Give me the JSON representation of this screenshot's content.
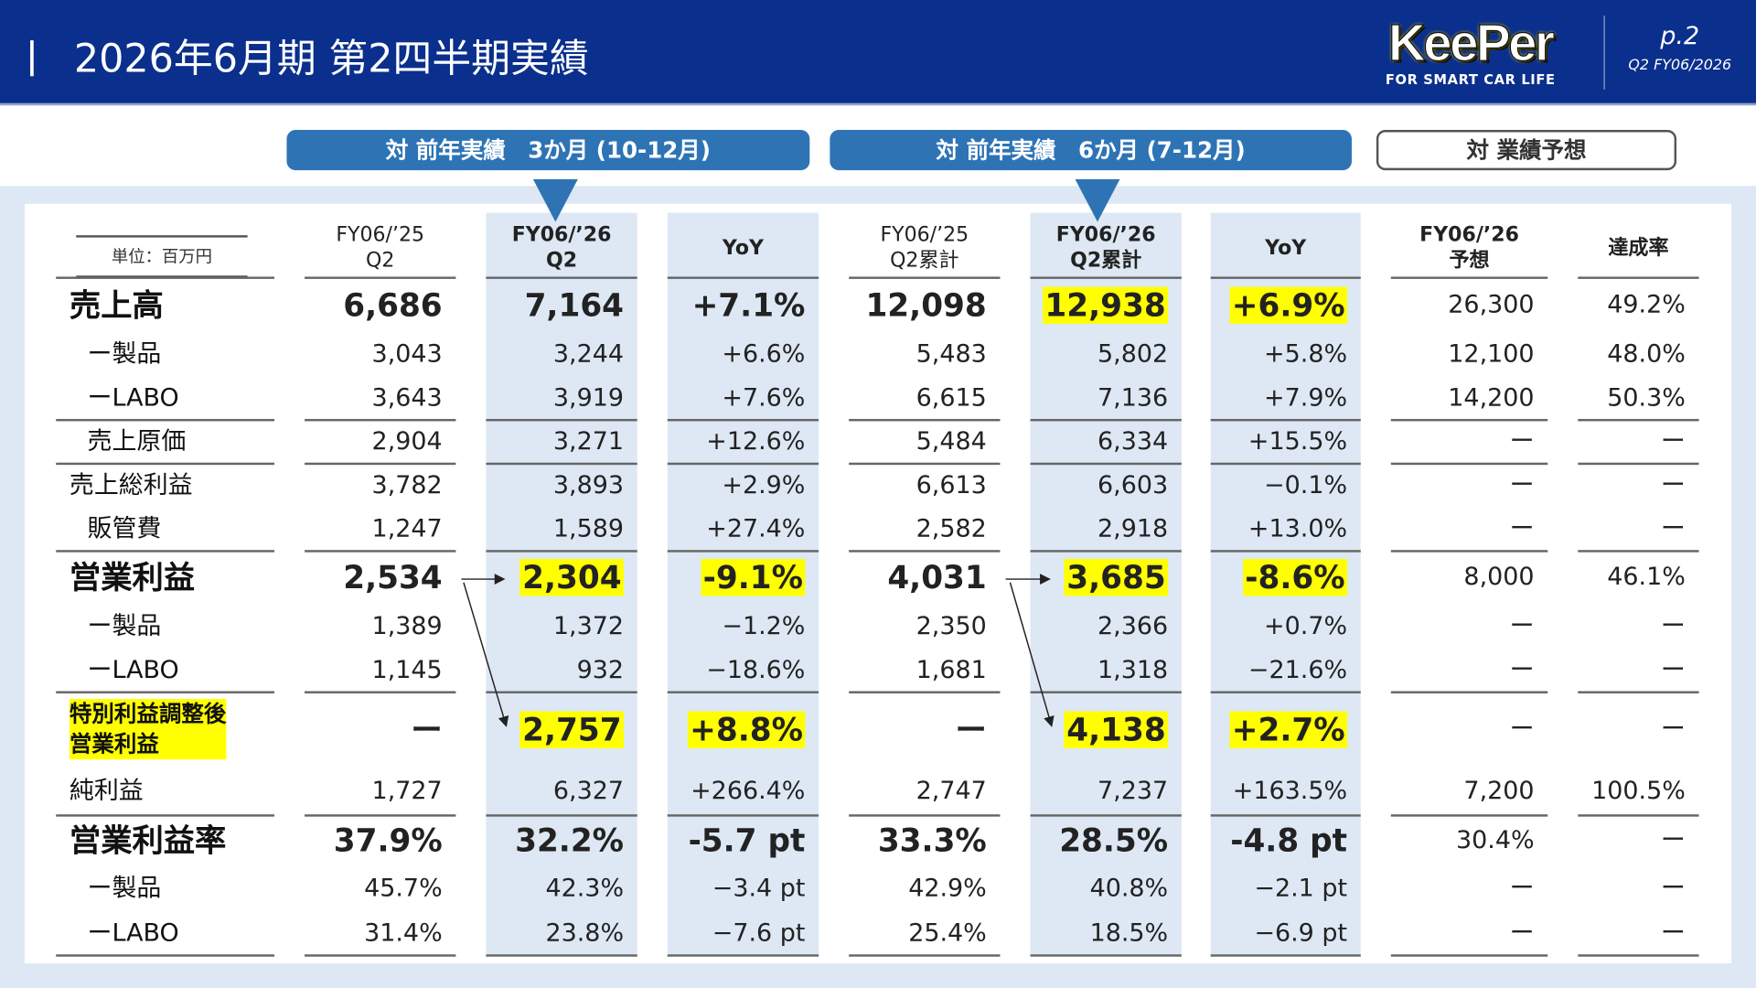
{
  "header": {
    "title": "2026年6月期 第2四半期実績",
    "logo_text": "KeePer",
    "logo_tagline": "FOR SMART CAR LIFE",
    "page": "p.2",
    "period": "Q2 FY06/2026"
  },
  "tabs": [
    "対 前年実績　3か月 (10-12月)",
    "対 前年実績　6か月 (7-12月)",
    "対 業績予想"
  ],
  "unit_label": "単位：百万円",
  "columns": [
    [
      "FY06/’25",
      "Q2"
    ],
    [
      "FY06/’26",
      "Q2"
    ],
    [
      "YoY",
      ""
    ],
    [
      "FY06/’25",
      "Q2累計"
    ],
    [
      "FY06/’26",
      "Q2累計"
    ],
    [
      "YoY",
      ""
    ],
    [
      "FY06/’26",
      "予想"
    ],
    [
      "達成率",
      ""
    ]
  ],
  "colors": {
    "header_bg": "#0b2f8c",
    "accent": "#2e74b5",
    "highlight": "#ffff00",
    "column_bg": "#dde8f4"
  },
  "rows": [
    {
      "label": "売上高",
      "style": "big",
      "cells": [
        "6,686",
        "7,164",
        "+7.1%",
        "12,098",
        "12,938",
        "+6.9%",
        "26,300",
        "49.2%"
      ],
      "hl": [
        4,
        5
      ]
    },
    {
      "label": "ー製品",
      "style": "indent",
      "cells": [
        "3,043",
        "3,244",
        "+6.6%",
        "5,483",
        "5,802",
        "+5.8%",
        "12,100",
        "48.0%"
      ]
    },
    {
      "label": "ーLABO",
      "style": "indent",
      "cells": [
        "3,643",
        "3,919",
        "+7.6%",
        "6,615",
        "7,136",
        "+7.9%",
        "14,200",
        "50.3%"
      ]
    },
    {
      "label": "売上原価",
      "style": "indent",
      "cells": [
        "2,904",
        "3,271",
        "+12.6%",
        "5,484",
        "6,334",
        "+15.5%",
        "ー",
        "ー"
      ]
    },
    {
      "label": "売上総利益",
      "style": "norm",
      "cells": [
        "3,782",
        "3,893",
        "+2.9%",
        "6,613",
        "6,603",
        "−0.1%",
        "ー",
        "ー"
      ]
    },
    {
      "label": "販管費",
      "style": "indent",
      "cells": [
        "1,247",
        "1,589",
        "+27.4%",
        "2,582",
        "2,918",
        "+13.0%",
        "ー",
        "ー"
      ]
    },
    {
      "label": "営業利益",
      "style": "big",
      "cells": [
        "2,534",
        "2,304",
        "-9.1%",
        "4,031",
        "3,685",
        "-8.6%",
        "8,000",
        "46.1%"
      ],
      "hl": [
        1,
        2,
        4,
        5
      ]
    },
    {
      "label": "ー製品",
      "style": "indent",
      "cells": [
        "1,389",
        "1,372",
        "−1.2%",
        "2,350",
        "2,366",
        "+0.7%",
        "ー",
        "ー"
      ]
    },
    {
      "label": "ーLABO",
      "style": "indent",
      "cells": [
        "1,145",
        "932",
        "−18.6%",
        "1,681",
        "1,318",
        "−21.6%",
        "ー",
        "ー"
      ]
    },
    {
      "label": "特別利益調整後\n営業利益",
      "style": "special",
      "cells": [
        "ー",
        "2,757",
        "+8.8%",
        "ー",
        "4,138",
        "+2.7%",
        "ー",
        "ー"
      ],
      "hl": [
        1,
        2,
        4,
        5
      ]
    },
    {
      "label": "純利益",
      "style": "norm",
      "cells": [
        "1,727",
        "6,327",
        "+266.4%",
        "2,747",
        "7,237",
        "+163.5%",
        "7,200",
        "100.5%"
      ]
    },
    {
      "label": "営業利益率",
      "style": "big",
      "cells": [
        "37.9%",
        "32.2%",
        "-5.7 pt",
        "33.3%",
        "28.5%",
        "-4.8 pt",
        "30.4%",
        "ー"
      ]
    },
    {
      "label": "ー製品",
      "style": "indent",
      "cells": [
        "45.7%",
        "42.3%",
        "−3.4 pt",
        "42.9%",
        "40.8%",
        "−2.1 pt",
        "ー",
        "ー"
      ]
    },
    {
      "label": "ーLABO",
      "style": "indent",
      "cells": [
        "31.4%",
        "23.8%",
        "−7.6 pt",
        "25.4%",
        "18.5%",
        "−6.9 pt",
        "ー",
        "ー"
      ]
    }
  ]
}
